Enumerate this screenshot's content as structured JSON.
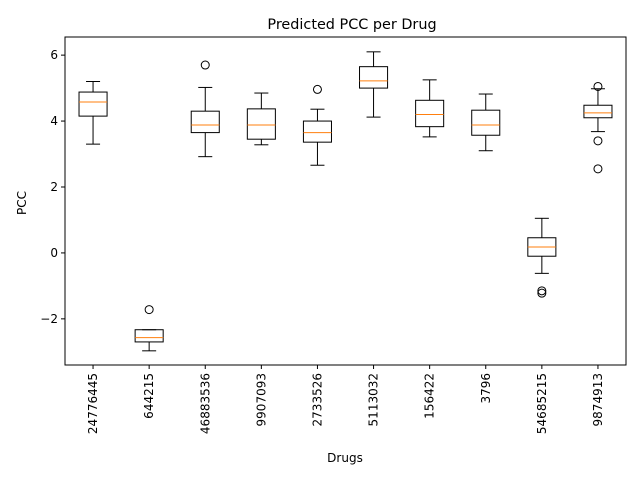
{
  "chart_data": {
    "type": "boxplot",
    "title": "Predicted PCC per Drug",
    "xlabel": "Drugs",
    "ylabel": "PCC",
    "ylim": [
      -3.4,
      6.55
    ],
    "yticks": [
      -2,
      0,
      2,
      4,
      6
    ],
    "grid": false,
    "colors": {
      "box": "#000000",
      "median": "#ff7f0e",
      "background": "#ffffff"
    },
    "categories": [
      "24776445",
      "644215",
      "46883536",
      "9907093",
      "2733526",
      "5113032",
      "156422",
      "3796",
      "54685215",
      "9874913"
    ],
    "boxes": [
      {
        "category": "24776445",
        "whisker_low": 3.3,
        "q1": 4.15,
        "median": 4.58,
        "q3": 4.88,
        "whisker_high": 5.2,
        "outliers": []
      },
      {
        "category": "644215",
        "whisker_low": -2.97,
        "q1": -2.7,
        "median": -2.57,
        "q3": -2.33,
        "whisker_high": -2.33,
        "outliers": [
          -1.72
        ]
      },
      {
        "category": "46883536",
        "whisker_low": 2.92,
        "q1": 3.65,
        "median": 3.88,
        "q3": 4.3,
        "whisker_high": 5.02,
        "outliers": [
          5.7
        ]
      },
      {
        "category": "9907093",
        "whisker_low": 3.28,
        "q1": 3.45,
        "median": 3.88,
        "q3": 4.37,
        "whisker_high": 4.85,
        "outliers": []
      },
      {
        "category": "2733526",
        "whisker_low": 2.66,
        "q1": 3.36,
        "median": 3.65,
        "q3": 4.0,
        "whisker_high": 4.36,
        "outliers": [
          4.96
        ]
      },
      {
        "category": "5113032",
        "whisker_low": 4.12,
        "q1": 5.0,
        "median": 5.22,
        "q3": 5.65,
        "whisker_high": 6.1,
        "outliers": []
      },
      {
        "category": "156422",
        "whisker_low": 3.52,
        "q1": 3.83,
        "median": 4.2,
        "q3": 4.63,
        "whisker_high": 5.25,
        "outliers": []
      },
      {
        "category": "3796",
        "whisker_low": 3.1,
        "q1": 3.57,
        "median": 3.88,
        "q3": 4.33,
        "whisker_high": 4.82,
        "outliers": []
      },
      {
        "category": "54685215",
        "whisker_low": -0.62,
        "q1": -0.1,
        "median": 0.18,
        "q3": 0.46,
        "whisker_high": 1.05,
        "outliers": [
          -1.15,
          -1.22
        ]
      },
      {
        "category": "9874913",
        "whisker_low": 3.68,
        "q1": 4.1,
        "median": 4.25,
        "q3": 4.48,
        "whisker_high": 4.98,
        "outliers": [
          5.05,
          3.4,
          2.55
        ]
      }
    ]
  }
}
